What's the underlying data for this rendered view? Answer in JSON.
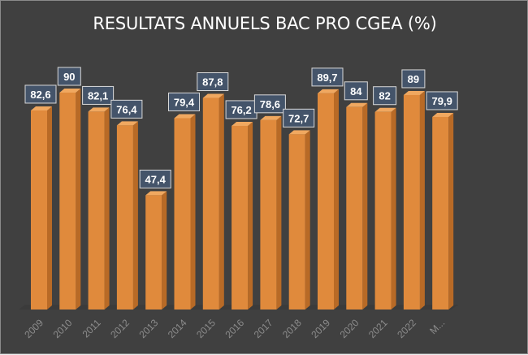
{
  "chart_data": {
    "type": "bar",
    "title": "RESULTATS ANNUELS BAC PRO CGEA (%)",
    "categories": [
      "2009",
      "2010",
      "2011",
      "2012",
      "2013",
      "2014",
      "2015",
      "2016",
      "2017",
      "2018",
      "2019",
      "2020",
      "2021",
      "2022",
      "M..."
    ],
    "values": [
      82.6,
      90,
      82.1,
      76.4,
      47.4,
      79.4,
      87.8,
      76.2,
      78.6,
      72.7,
      89.7,
      84,
      82,
      89,
      79.9
    ],
    "labels": [
      "82,6",
      "90",
      "82,1",
      "76,4",
      "47,4",
      "79,4",
      "87,8",
      "76,2",
      "78,6",
      "72,7",
      "89,7",
      "84",
      "82",
      "89",
      "79,9"
    ],
    "xlabel": "",
    "ylabel": "",
    "ylim": [
      0,
      90
    ],
    "grid": false,
    "legend": "none",
    "colors": {
      "background": "#404040",
      "bar_front": "#e08a3c",
      "bar_side": "#b86a26",
      "bar_top": "#f0a860",
      "label_box": "#44546a",
      "label_text": "#ffffff",
      "tick_label": "#8c8c8c",
      "title": "#ffffff"
    }
  }
}
